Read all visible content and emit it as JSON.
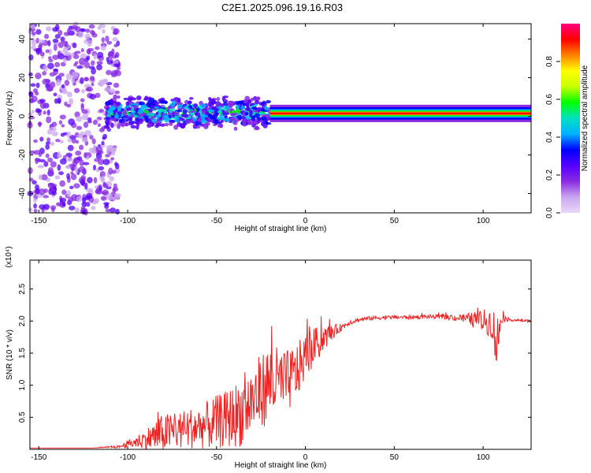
{
  "title": "C2E1.2025.096.19.16.R03",
  "chart_data": [
    {
      "type": "heatmap",
      "xlabel": "Height of straight line (km)",
      "ylabel": "Frequency (Hz)",
      "xlim": [
        -155,
        127
      ],
      "ylim": [
        -50,
        48
      ],
      "xticks": [
        -150,
        -100,
        -50,
        0,
        50,
        100
      ],
      "yticks": [
        -40,
        -20,
        0,
        20,
        40
      ],
      "colorbar": {
        "label": "Normalized spectral amplitude",
        "range": [
          0,
          1
        ],
        "ticks": [
          0.0,
          0.2,
          0.4,
          0.6,
          0.8
        ],
        "tick_labels": [
          "0.0",
          "0.2",
          "0.4",
          "0.6",
          "0.8"
        ],
        "colormap": [
          "#e8d8f8",
          "#c9a6ee",
          "#8a2be2",
          "#5500ff",
          "#0000ff",
          "#00b0ff",
          "#00e0c0",
          "#00ff00",
          "#c8ff00",
          "#ffff00",
          "#ff8000",
          "#ff0000",
          "#ff0080"
        ]
      },
      "regions": [
        {
          "x_range": [
            -155,
            -105
          ],
          "freq_range": [
            -50,
            48
          ],
          "amplitude": 0.18,
          "pattern": "scattered noise"
        },
        {
          "x_range": [
            -112,
            -20
          ],
          "freq_range": [
            -8,
            10
          ],
          "amplitude": 0.45,
          "pattern": "noisy band"
        },
        {
          "x_range": [
            -20,
            127
          ],
          "freq_range": [
            -1,
            4
          ],
          "amplitude": 0.95,
          "pattern": "narrow band near 2 Hz"
        }
      ]
    },
    {
      "type": "line",
      "xlabel": "Height of straight line (km)",
      "ylabel": "SNR (10 * v/v)",
      "scale_label": "(x10⁴)",
      "xlim": [
        -155,
        127
      ],
      "ylim": [
        0,
        2.95
      ],
      "xticks": [
        -150,
        -100,
        -50,
        0,
        50,
        100
      ],
      "yticks": [
        0.5,
        1.0,
        1.5,
        2.0,
        2.5
      ],
      "ytick_labels": [
        "0.5",
        "1.0",
        "1.5",
        "2.0",
        "2.5"
      ],
      "color": "#ee2222",
      "series": [
        {
          "x": [
            -155,
            -140,
            -120,
            -105,
            -100,
            -95,
            -90,
            -85,
            -80,
            -75,
            -70,
            -65,
            -60,
            -55,
            -50,
            -45,
            -40,
            -35,
            -30,
            -25,
            -20,
            -15,
            -10,
            -5,
            0,
            5,
            10,
            15,
            20,
            25,
            30,
            35,
            40,
            50,
            60,
            70,
            80,
            85,
            90,
            95,
            100,
            105,
            108,
            110,
            115,
            120,
            127
          ],
          "y": [
            0.02,
            0.02,
            0.02,
            0.04,
            0.08,
            0.12,
            0.16,
            0.2,
            0.25,
            0.28,
            0.3,
            0.33,
            0.35,
            0.38,
            0.42,
            0.46,
            0.52,
            0.6,
            0.75,
            0.9,
            1.05,
            1.05,
            1.05,
            1.2,
            1.45,
            1.6,
            1.72,
            1.82,
            1.9,
            1.98,
            2.02,
            2.04,
            2.05,
            2.06,
            2.06,
            2.07,
            2.06,
            2.05,
            2.04,
            2.02,
            2.0,
            1.98,
            1.6,
            2.05,
            2.02,
            2.01,
            2.0
          ],
          "noise": [
            0.0,
            0.0,
            0.0,
            0.02,
            0.06,
            0.1,
            0.15,
            0.25,
            0.3,
            0.3,
            0.3,
            0.32,
            0.34,
            0.38,
            0.42,
            0.45,
            0.5,
            0.55,
            0.55,
            0.6,
            0.6,
            0.55,
            0.5,
            0.45,
            0.35,
            0.3,
            0.2,
            0.12,
            0.06,
            0.04,
            0.03,
            0.03,
            0.03,
            0.03,
            0.03,
            0.03,
            0.04,
            0.05,
            0.08,
            0.12,
            0.18,
            0.25,
            0.55,
            0.08,
            0.02,
            0.02,
            0.02
          ]
        }
      ]
    }
  ]
}
